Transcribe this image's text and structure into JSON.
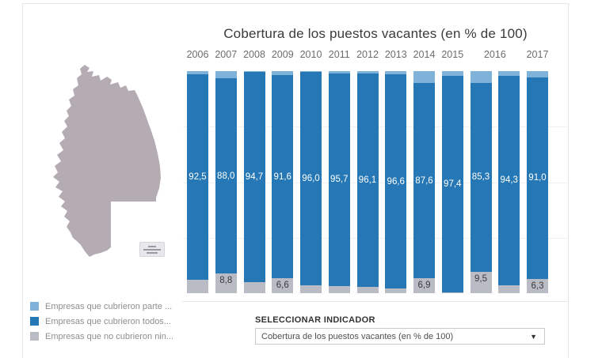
{
  "chart_data": {
    "type": "bar",
    "stacked": true,
    "title": "Cobertura de los puestos vacantes (en % de 100)",
    "unit": "% (decimal comma format)",
    "ylim": [
      0,
      100
    ],
    "grid": "faint horizontal lines at 25/50/75",
    "legend_position": "bottom-left",
    "series_order_top_to_bottom": [
      "parte",
      "todos",
      "ninguno"
    ],
    "series_colors": {
      "parte": "#7eb2d8",
      "todos": "#2577b5",
      "ninguno": "#b9bcc4"
    },
    "axis_labels": [
      {
        "text": "2006",
        "bars": [
          0
        ]
      },
      {
        "text": "2007",
        "bars": [
          1
        ]
      },
      {
        "text": "2008",
        "bars": [
          2
        ]
      },
      {
        "text": "2009",
        "bars": [
          3
        ]
      },
      {
        "text": "2010",
        "bars": [
          4
        ]
      },
      {
        "text": "2011",
        "bars": [
          5
        ]
      },
      {
        "text": "2012",
        "bars": [
          6
        ]
      },
      {
        "text": "2013",
        "bars": [
          7
        ]
      },
      {
        "text": "2014",
        "bars": [
          8
        ]
      },
      {
        "text": "2015",
        "bars": [
          9
        ]
      },
      {
        "text": "2016",
        "bars": [
          10,
          11
        ]
      },
      {
        "text": "2017",
        "bars": [
          12
        ]
      }
    ],
    "bars": [
      {
        "year": "2006",
        "parte": 1.5,
        "todos": 92.5,
        "ninguno": 6.0,
        "todos_label": "92,5",
        "ninguno_label": ""
      },
      {
        "year": "2007",
        "parte": 3.2,
        "todos": 88.0,
        "ninguno": 8.8,
        "todos_label": "88,0",
        "ninguno_label": "8,8"
      },
      {
        "year": "2008",
        "parte": 0.5,
        "todos": 94.7,
        "ninguno": 4.8,
        "todos_label": "94,7",
        "ninguno_label": ""
      },
      {
        "year": "2009",
        "parte": 1.8,
        "todos": 91.6,
        "ninguno": 6.6,
        "todos_label": "91,6",
        "ninguno_label": "6,6"
      },
      {
        "year": "2010",
        "parte": 0.5,
        "todos": 96.0,
        "ninguno": 3.5,
        "todos_label": "96,0",
        "ninguno_label": ""
      },
      {
        "year": "2011",
        "parte": 1.0,
        "todos": 95.7,
        "ninguno": 3.3,
        "todos_label": "95,7",
        "ninguno_label": ""
      },
      {
        "year": "2012",
        "parte": 1.0,
        "todos": 96.1,
        "ninguno": 2.9,
        "todos_label": "96,1",
        "ninguno_label": ""
      },
      {
        "year": "2013",
        "parte": 1.4,
        "todos": 96.6,
        "ninguno": 2.0,
        "todos_label": "96,6",
        "ninguno_label": ""
      },
      {
        "year": "2014",
        "parte": 5.5,
        "todos": 87.6,
        "ninguno": 6.9,
        "todos_label": "87,6",
        "ninguno_label": "6,9"
      },
      {
        "year": "2015",
        "parte": 2.3,
        "todos": 97.4,
        "ninguno": 0.3,
        "todos_label": "97,4",
        "ninguno_label": ""
      },
      {
        "year": "2016",
        "parte": 5.2,
        "todos": 85.3,
        "ninguno": 9.5,
        "todos_label": "85,3",
        "ninguno_label": "9,5"
      },
      {
        "year": "2016",
        "parte": 2.1,
        "todos": 94.3,
        "ninguno": 3.6,
        "todos_label": "94,3",
        "ninguno_label": ""
      },
      {
        "year": "2017",
        "parte": 2.7,
        "todos": 91.0,
        "ninguno": 6.3,
        "todos_label": "91,0",
        "ninguno_label": "6,3"
      }
    ]
  },
  "legend": {
    "items": [
      {
        "series": "parte",
        "label": "Empresas que cubrieron parte ...",
        "color": "#7eb2d8"
      },
      {
        "series": "todos",
        "label": "Empresas que cubrieron todos...",
        "color": "#2577b5"
      },
      {
        "series": "ninguno",
        "label": "Empresas que no cubrieron nin...",
        "color": "#b9bcc4"
      }
    ]
  },
  "selector": {
    "label": "SELECCIONAR INDICADOR",
    "value": "Cobertura de los puestos vacantes (en % de 100)",
    "caret": "▼"
  },
  "map": {
    "region": "Mendoza",
    "fill": "#b4abb3"
  }
}
